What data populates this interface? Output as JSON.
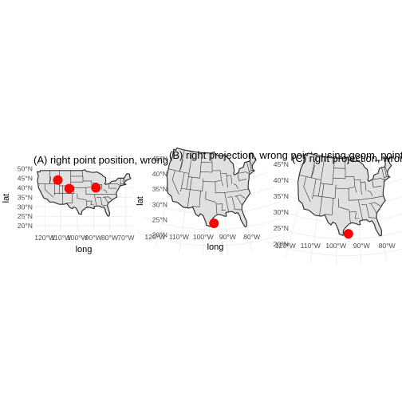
{
  "chart_data": [
    {
      "type": "scatter",
      "title": "(A) right point position, wrong projection",
      "xlabel": "long",
      "ylabel": "lat",
      "x_ticks": [
        "120°W",
        "110°W",
        "100°W",
        "90°W",
        "80°W",
        "70°W"
      ],
      "y_ticks": [
        "20°N",
        "25°N",
        "30°N",
        "35°N",
        "40°N",
        "45°N",
        "50°N"
      ],
      "xlim": [
        -126,
        -66
      ],
      "ylim": [
        18,
        51
      ],
      "projection": "none",
      "points": [
        {
          "x": -112.0,
          "y": 44.0
        },
        {
          "x": -105.0,
          "y": 39.5
        },
        {
          "x": -88.5,
          "y": 40.0
        }
      ],
      "point_color": "#ff0000",
      "grid": true
    },
    {
      "type": "scatter",
      "title": "(B) right projection, wrong points using geom_point",
      "xlabel": "long",
      "ylabel": "lat",
      "x_ticks": [
        "120°W",
        "110°W",
        "100°W",
        "90°W",
        "80°W"
      ],
      "y_ticks": [
        "20°N",
        "25°N",
        "30°N",
        "35°N",
        "40°N",
        "45°N"
      ],
      "projection": "albers",
      "points": [
        {
          "x": -95.5,
          "y": 27.0
        }
      ],
      "point_color": "#ff0000",
      "grid": true
    },
    {
      "type": "scatter",
      "title": "(C) right projection, wrong points using geom_spatial_point",
      "xlabel": "",
      "ylabel": "",
      "x_ticks": [
        "120°W",
        "110°W",
        "100°W",
        "90°W",
        "80°W"
      ],
      "y_ticks": [
        "20°N",
        "25°N",
        "30°N",
        "35°N",
        "40°N",
        "45°N"
      ],
      "projection": "albers",
      "points": [
        {
          "x": -95.0,
          "y": 26.5
        }
      ],
      "point_color": "#ff0000",
      "grid": true
    }
  ]
}
